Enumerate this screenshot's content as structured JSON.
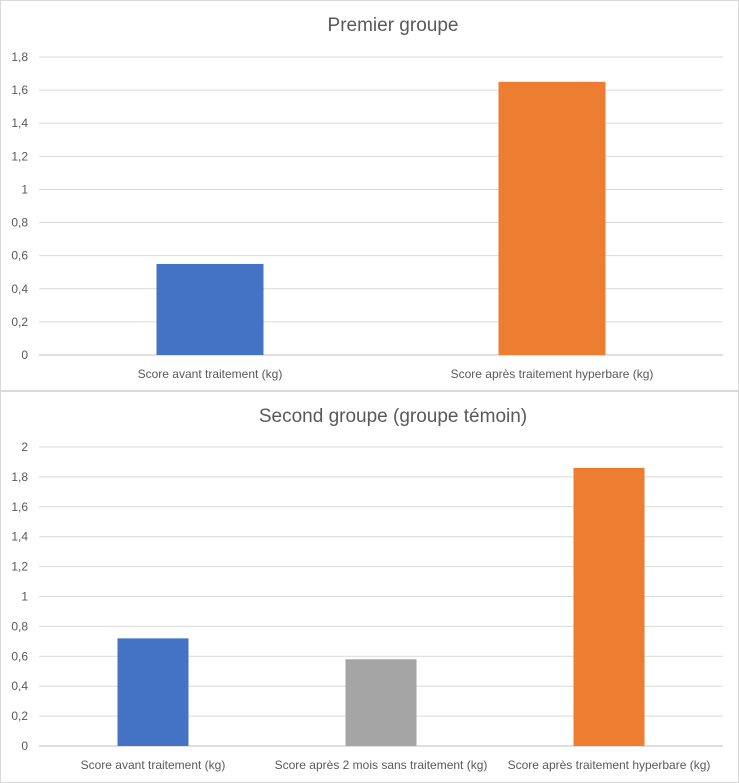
{
  "chart_data": [
    {
      "type": "bar",
      "title": "Premier groupe",
      "categories": [
        "Score avant traitement (kg)",
        "Score après traitement hyperbare (kg)"
      ],
      "values": [
        0.55,
        1.65
      ],
      "colors": [
        "#4472c4",
        "#ed7d31"
      ],
      "ylim": [
        0,
        1.8
      ],
      "yticks": [
        "0",
        "0,2",
        "0,4",
        "0,6",
        "0,8",
        "1",
        "1,2",
        "1,4",
        "1,6",
        "1,8"
      ],
      "grid": true
    },
    {
      "type": "bar",
      "title": "Second groupe (groupe témoin)",
      "categories": [
        "Score avant traitement (kg)",
        "Score après 2 mois sans traitement (kg)",
        "Score après traitement hyperbare (kg)"
      ],
      "values": [
        0.72,
        0.58,
        1.86
      ],
      "colors": [
        "#4472c4",
        "#a5a5a5",
        "#ed7d31"
      ],
      "ylim": [
        0,
        2
      ],
      "yticks": [
        "0",
        "0,2",
        "0,4",
        "0,6",
        "0,8",
        "1",
        "1,2",
        "1,4",
        "1,6",
        "1,8",
        "2"
      ],
      "grid": true
    }
  ]
}
